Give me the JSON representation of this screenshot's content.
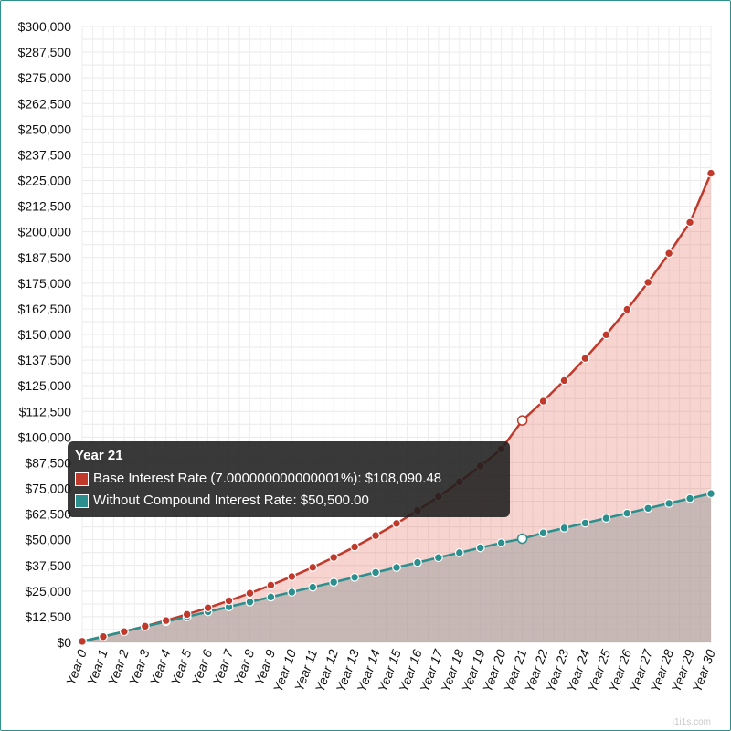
{
  "chart_data": {
    "type": "area",
    "categories": [
      "Year 0",
      "Year 1",
      "Year 2",
      "Year 3",
      "Year 4",
      "Year 5",
      "Year 6",
      "Year 7",
      "Year 8",
      "Year 9",
      "Year 10",
      "Year 11",
      "Year 12",
      "Year 13",
      "Year 14",
      "Year 15",
      "Year 16",
      "Year 17",
      "Year 18",
      "Year 19",
      "Year 20",
      "Year 21",
      "Year 22",
      "Year 23",
      "Year 24",
      "Year 25",
      "Year 26",
      "Year 27",
      "Year 28",
      "Year 29",
      "Year 30"
    ],
    "series": [
      {
        "name": "Base Interest Rate (7.000000000000001%)",
        "color": "#c0392b",
        "fill": "rgba(231,120,110,0.32)",
        "values": [
          500,
          2785,
          5230,
          7846,
          10645,
          13640,
          16845,
          20274,
          23943,
          27869,
          32070,
          36565,
          41374,
          46520,
          52027,
          57919,
          64223,
          70969,
          78187,
          85910,
          94174,
          108090.48,
          117497,
          127563,
          138333,
          149857,
          162188,
          175381,
          189498,
          204603,
          228500
        ]
      },
      {
        "name": "Without Compound Interest Rate",
        "color": "#2b8f8d",
        "fill": "rgba(160,160,160,0.55)",
        "values": [
          500,
          2900,
          5300,
          7700,
          10100,
          12500,
          14900,
          17300,
          19700,
          22100,
          24500,
          26900,
          29300,
          31700,
          34100,
          36500,
          38900,
          41300,
          43700,
          46100,
          48500,
          50500,
          53300,
          55700,
          58100,
          60500,
          62900,
          65300,
          67700,
          70100,
          72500
        ]
      }
    ],
    "y_ticks": [
      "$0",
      "$12,500",
      "$25,000",
      "$37,500",
      "$50,000",
      "$62,500",
      "$75,000",
      "$87,500",
      "$100,000",
      "$112,500",
      "$125,000",
      "$137,500",
      "$150,000",
      "$162,500",
      "$175,000",
      "$187,500",
      "$200,000",
      "$212,500",
      "$225,000",
      "$237,500",
      "$250,000",
      "$262,500",
      "$275,000",
      "$287,500",
      "$300,000"
    ],
    "ylim": [
      0,
      300000
    ],
    "grid": true,
    "highlighted_index": 21
  },
  "tooltip": {
    "title": "Year 21",
    "rows": [
      {
        "label": "Base Interest Rate (7.000000000000001%): $108,090.48",
        "color": "#c0392b"
      },
      {
        "label": "Without Compound Interest Rate: $50,500.00",
        "color": "#2b8f8d"
      }
    ]
  },
  "watermark": "i1i1s.com"
}
